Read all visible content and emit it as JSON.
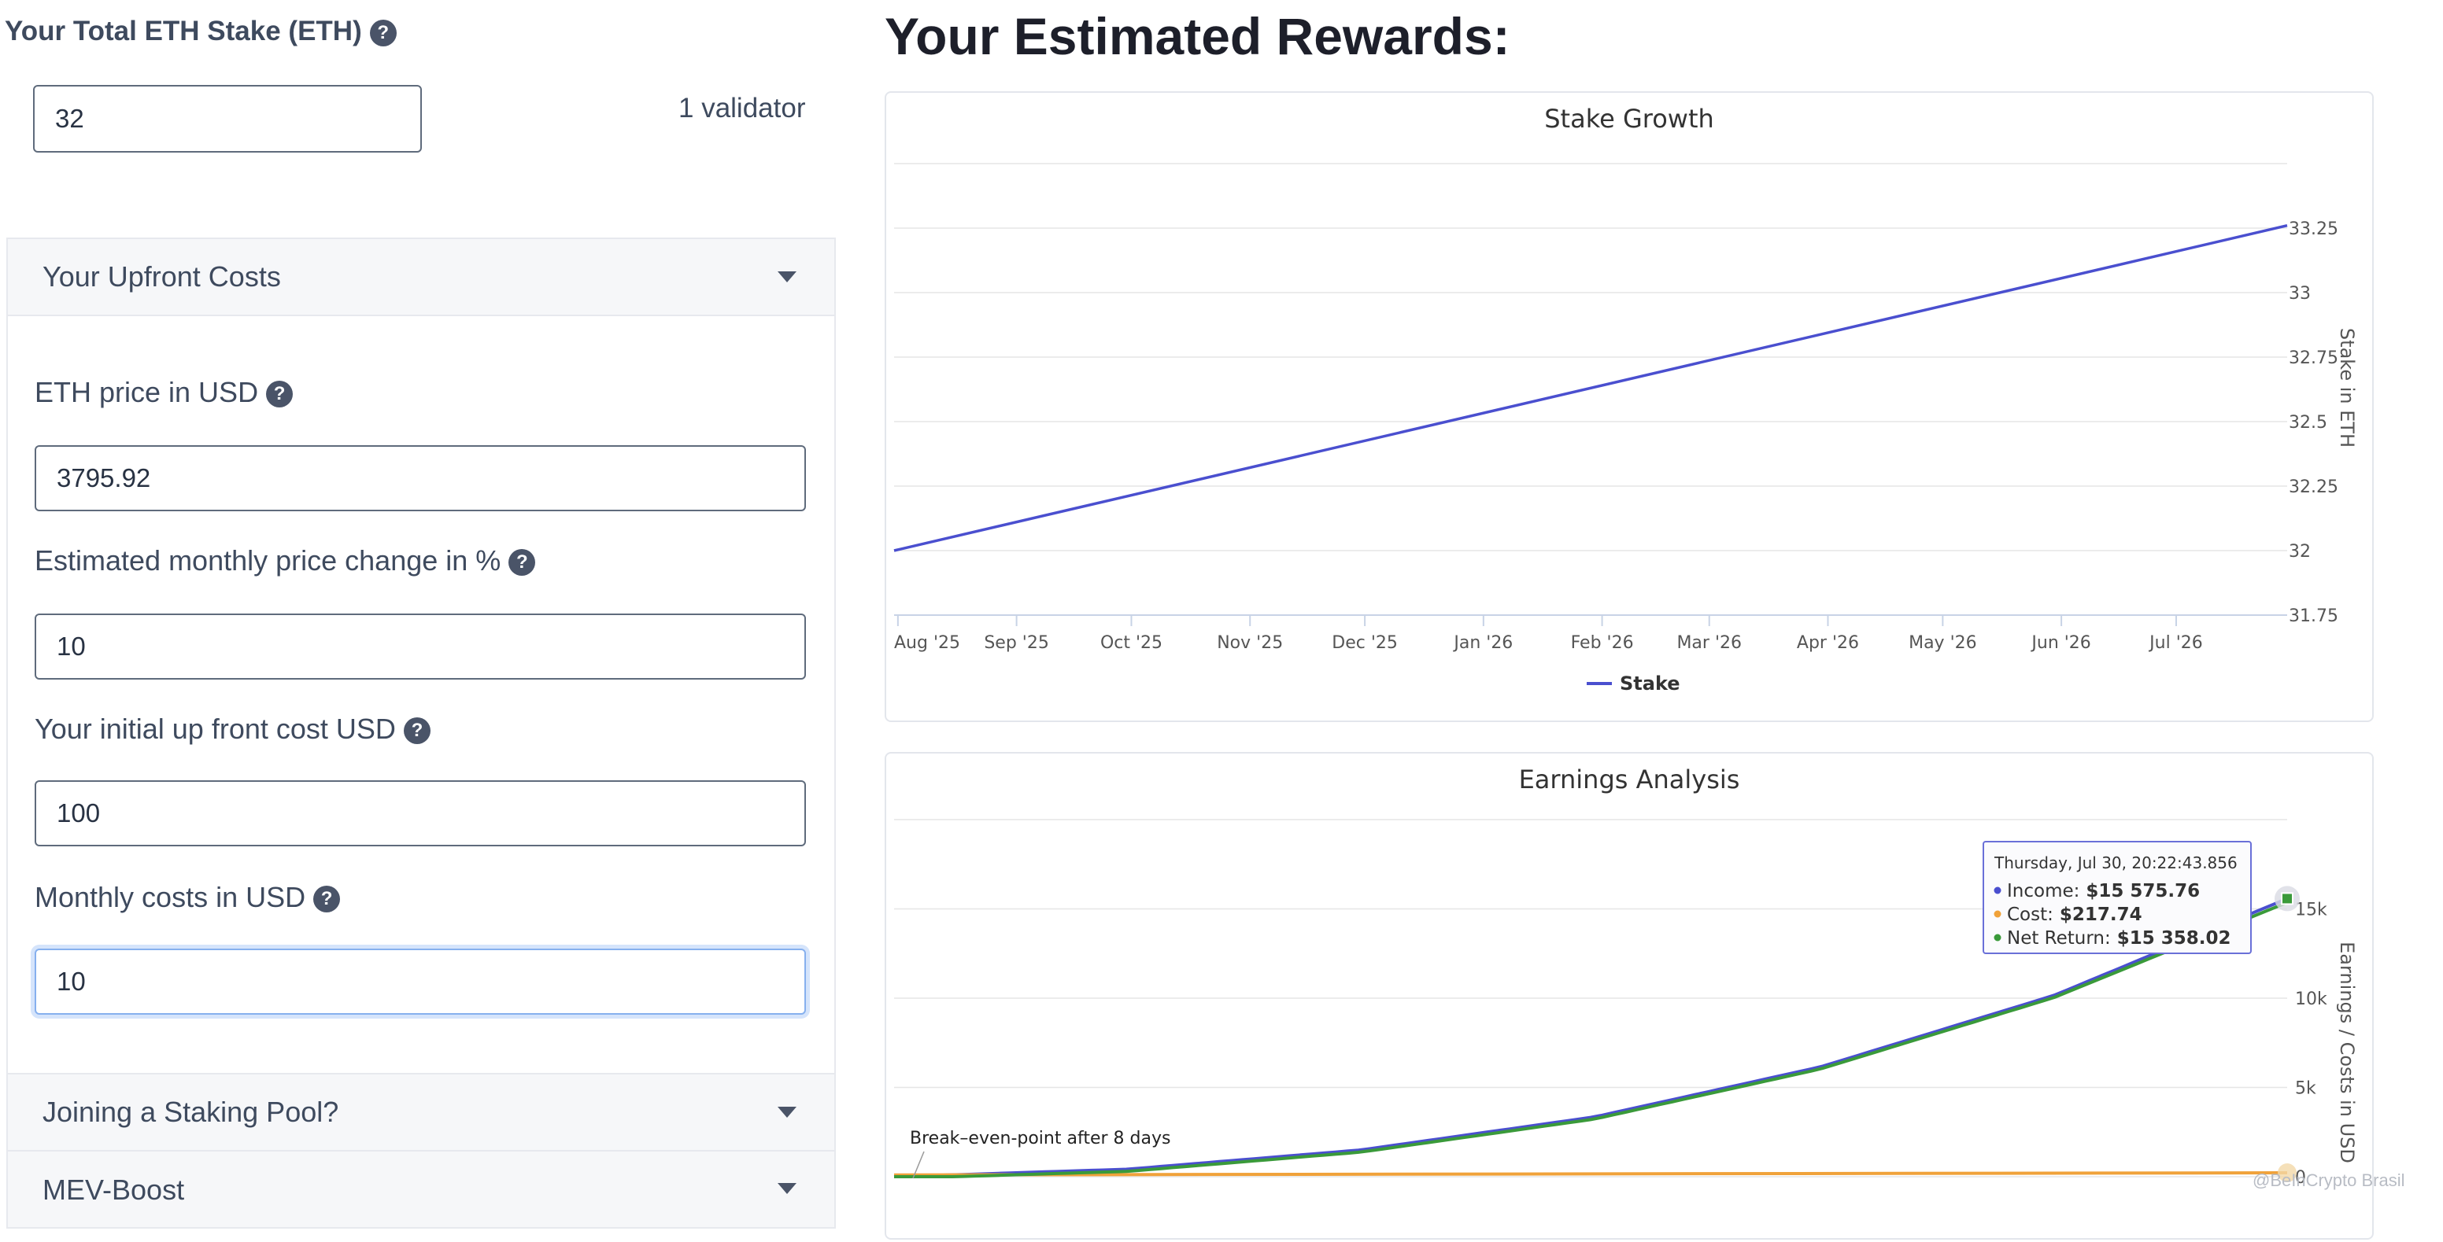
{
  "stake": {
    "label": "Your Total ETH Stake (ETH)",
    "value": "32",
    "validators": "1 validator"
  },
  "upfront": {
    "title": "Your Upfront Costs",
    "fields": [
      {
        "label": "ETH price in USD",
        "value": "3795.92",
        "help": true
      },
      {
        "label": "Estimated monthly price change in %",
        "value": "10",
        "help": true
      },
      {
        "label": "Your initial up front cost USD",
        "value": "100",
        "help": true
      },
      {
        "label": "Monthly costs in USD",
        "value": "10",
        "help": true
      }
    ]
  },
  "sections": {
    "staking_pool": "Joining a Staking Pool?",
    "mev_boost": "MEV-Boost"
  },
  "rewards_title": "Your Estimated Rewards:",
  "icons": {
    "help": "question-circle-icon",
    "caret": "caret-down-icon"
  },
  "chart_data": [
    {
      "type": "line",
      "title": "Stake Growth",
      "ylabel": "Stake in ETH",
      "x_ticks": [
        "Aug '25",
        "Sep '25",
        "Oct '25",
        "Nov '25",
        "Dec '25",
        "Jan '26",
        "Feb '26",
        "Mar '26",
        "Apr '26",
        "May '26",
        "Jun '26",
        "Jul '26"
      ],
      "y_ticks": [
        31.75,
        32,
        32.25,
        32.5,
        32.75,
        33,
        33.25
      ],
      "y_tick_labels": [
        "31.75",
        "32",
        "32.25",
        "32.5",
        "32.75",
        "33",
        "33.25"
      ],
      "ylim": [
        31.75,
        33.5
      ],
      "xlim": [
        "2025-07-31",
        "2026-07-30"
      ],
      "grid": true,
      "legend": "bottom-center",
      "series": [
        {
          "name": "Stake",
          "color": "#4a4fcf",
          "x": [
            "2025-07-31",
            "2026-07-30"
          ],
          "values": [
            32.0,
            33.26
          ]
        }
      ]
    },
    {
      "type": "line",
      "title": "Earnings Analysis",
      "ylabel": "Earnings / Costs in USD",
      "y_ticks": [
        0,
        5000,
        10000,
        15000
      ],
      "y_tick_labels": [
        "0",
        "5k",
        "10k",
        "15k"
      ],
      "ylim": [
        0,
        20000
      ],
      "xlim": [
        "2025-07-31",
        "2026-07-30"
      ],
      "grid": true,
      "annotation": "Break–even-point after 8 days",
      "tooltip": {
        "header": "Thursday, Jul 30, 20:22:43.856",
        "rows": [
          {
            "label": "Income:",
            "value": "$15 575.76",
            "color": "#4a4fcf"
          },
          {
            "label": "Cost:",
            "value": "$217.74",
            "color": "#f0a23a"
          },
          {
            "label": "Net Return:",
            "value": "$15 358.02",
            "color": "#3a9a3a"
          }
        ]
      },
      "series": [
        {
          "color": "#4a4fcf",
          "x": [
            "2025-07-31",
            "2025-09-30",
            "2025-11-30",
            "2026-01-30",
            "2026-03-30",
            "2026-05-30",
            "2026-07-30"
          ],
          "values": [
            0,
            420,
            1500,
            3350,
            6150,
            10150,
            15575.76
          ]
        },
        {
          "color": "#f0a23a",
          "x": [
            "2025-07-31",
            "2026-07-30"
          ],
          "values": [
            100,
            217.74
          ]
        },
        {
          "color": "#3a9a3a",
          "x": [
            "2025-07-31",
            "2025-09-30",
            "2025-11-30",
            "2026-01-30",
            "2026-03-30",
            "2026-05-30",
            "2026-07-30"
          ],
          "values": [
            -100,
            300,
            1380,
            3230,
            6030,
            10030,
            15358.02
          ]
        }
      ]
    }
  ],
  "watermark": "@BeInCrypto Brasil"
}
